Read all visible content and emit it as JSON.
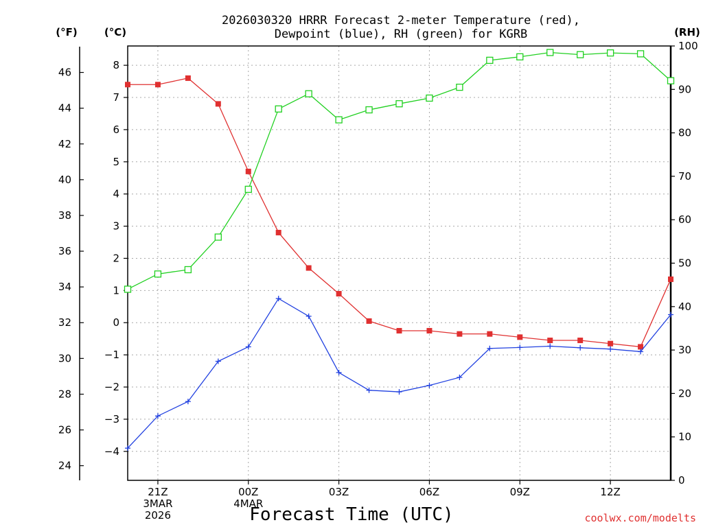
{
  "chart_data": {
    "type": "line",
    "title_line1": "2026030320 HRRR Forecast 2-meter Temperature (red),",
    "title_line2": "Dewpoint (blue), RH (green) for KGRB",
    "xlabel": "Forecast Time (UTC)",
    "credit": "coolwx.com/modelts",
    "unit_f": "(°F)",
    "unit_c": "(°C)",
    "unit_rh": "(RH)",
    "x_hours": [
      20,
      21,
      22,
      23,
      24,
      25,
      26,
      27,
      28,
      29,
      30,
      31,
      32,
      33,
      34,
      35,
      36,
      37,
      38
    ],
    "x_ticks": [
      {
        "hour": 21,
        "lines": [
          "21Z",
          "3MAR",
          "2026"
        ]
      },
      {
        "hour": 24,
        "lines": [
          "00Z",
          "4MAR"
        ]
      },
      {
        "hour": 27,
        "lines": [
          "03Z"
        ]
      },
      {
        "hour": 30,
        "lines": [
          "06Z"
        ]
      },
      {
        "hour": 33,
        "lines": [
          "09Z"
        ]
      },
      {
        "hour": 36,
        "lines": [
          "12Z"
        ]
      }
    ],
    "c_range": [
      -4.9,
      8.6
    ],
    "c_ticks": [
      -4,
      -3,
      -2,
      -1,
      0,
      1,
      2,
      3,
      4,
      5,
      6,
      7,
      8
    ],
    "f_ticks": [
      24,
      26,
      28,
      30,
      32,
      34,
      36,
      38,
      40,
      42,
      44,
      46
    ],
    "rh_range": [
      0,
      100
    ],
    "rh_ticks": [
      0,
      10,
      20,
      30,
      40,
      50,
      60,
      70,
      80,
      90,
      100
    ],
    "series": [
      {
        "name": "Temperature",
        "unit": "C",
        "color": "#e03030",
        "marker": "filled-square",
        "values": [
          7.4,
          7.4,
          7.6,
          6.8,
          4.7,
          2.8,
          1.7,
          0.9,
          0.05,
          -0.25,
          -0.25,
          -0.35,
          -0.35,
          -0.45,
          -0.55,
          -0.55,
          -0.65,
          -0.75,
          1.35
        ]
      },
      {
        "name": "Dewpoint",
        "unit": "C",
        "color": "#2040e0",
        "marker": "plus",
        "values": [
          -3.9,
          -2.9,
          -2.45,
          -1.2,
          -0.75,
          0.75,
          0.2,
          -1.55,
          -2.1,
          -2.15,
          -1.95,
          -1.7,
          -0.8,
          -0.77,
          -0.73,
          -0.78,
          -0.82,
          -0.9,
          0.25
        ]
      },
      {
        "name": "RH",
        "unit": "%",
        "color": "#20d020",
        "marker": "open-square",
        "values": [
          44,
          47.5,
          48.5,
          56,
          67,
          85.5,
          89,
          83,
          85.3,
          86.7,
          88,
          90.5,
          96.7,
          97.5,
          98.5,
          98,
          98.4,
          98.2,
          92
        ]
      }
    ]
  }
}
